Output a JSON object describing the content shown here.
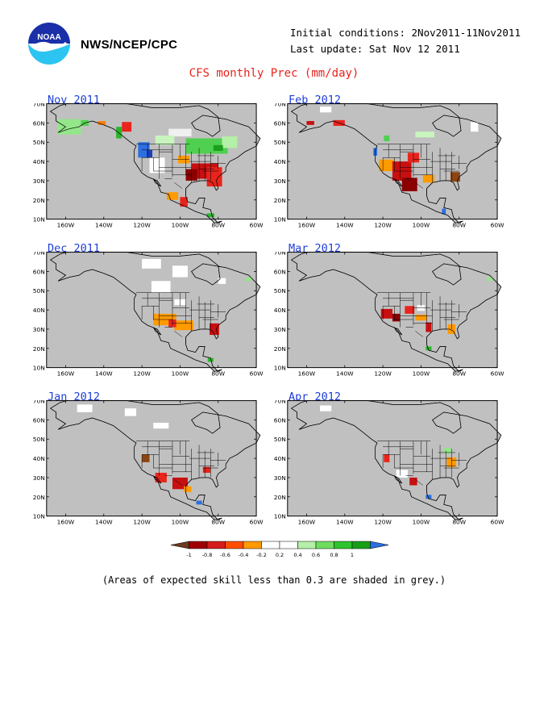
{
  "header": {
    "org": "NWS/NCEP/CPC",
    "initial_conditions": "Initial conditions: 2Nov2011-11Nov2011",
    "last_update": "Last update: Sat Nov 12 2011",
    "logo_text": "NOAA"
  },
  "title": "CFS monthly Prec (mm/day)",
  "axes": {
    "lat_labels": [
      "70N",
      "60N",
      "50N",
      "40N",
      "30N",
      "20N",
      "10N"
    ],
    "lon_labels": [
      "160W",
      "140W",
      "120W",
      "100W",
      "80W",
      "60W"
    ]
  },
  "panels": [
    {
      "label": "Nov 2011",
      "col": 0,
      "row": 0,
      "areas": [
        {
          "c": "#f0f0f0",
          "lat": 55,
          "lon": -100,
          "w": 12,
          "h": 4
        },
        {
          "c": "#c8f5be",
          "lat": 51,
          "lon": -108,
          "w": 10,
          "h": 5
        },
        {
          "c": "#50d050",
          "lat": 48,
          "lon": -86,
          "w": 22,
          "h": 8
        },
        {
          "c": "#b4f0a8",
          "lat": 50,
          "lon": -74,
          "w": 8,
          "h": 6
        },
        {
          "c": "#1ca01c",
          "lat": 47,
          "lon": -80,
          "w": 5,
          "h": 3
        },
        {
          "c": "#2b6fe0",
          "lat": 46,
          "lon": -119,
          "w": 6,
          "h": 8
        },
        {
          "c": "#1a3fbf",
          "lat": 44,
          "lon": -116,
          "w": 3,
          "h": 4
        },
        {
          "c": "#2ab42a",
          "lat": 55,
          "lon": -132,
          "w": 3,
          "h": 6
        },
        {
          "c": "#94e68a",
          "lat": 58,
          "lon": -158,
          "w": 12,
          "h": 8
        },
        {
          "c": "#50d050",
          "lat": 60,
          "lon": -150,
          "w": 4,
          "h": 3
        },
        {
          "c": "#e8241c",
          "lat": 58,
          "lon": -128,
          "w": 5,
          "h": 5
        },
        {
          "c": "#ff7f00",
          "lat": 60,
          "lon": -141,
          "w": 4,
          "h": 2
        },
        {
          "c": "#c81010",
          "lat": 35,
          "lon": -87,
          "w": 14,
          "h": 8
        },
        {
          "c": "#e8241c",
          "lat": 32,
          "lon": -82,
          "w": 8,
          "h": 10
        },
        {
          "c": "#8b0000",
          "lat": 33,
          "lon": -94,
          "w": 6,
          "h": 6
        },
        {
          "c": "#ff9a00",
          "lat": 41,
          "lon": -98,
          "w": 6,
          "h": 4
        },
        {
          "c": "#ff9a00",
          "lat": 22,
          "lon": -104,
          "w": 6,
          "h": 4
        },
        {
          "c": "#e8241c",
          "lat": 19,
          "lon": -98,
          "w": 4,
          "h": 5
        },
        {
          "c": "#ffffff",
          "lat": 38,
          "lon": -112,
          "w": 8,
          "h": 8
        },
        {
          "c": "#2ab42a",
          "lat": 12,
          "lon": -84,
          "w": 4,
          "h": 2
        }
      ]
    },
    {
      "label": "Feb 2012",
      "col": 1,
      "row": 0,
      "areas": [
        {
          "c": "#ffffff",
          "lat": 67,
          "lon": -150,
          "w": 6,
          "h": 3
        },
        {
          "c": "#e8241c",
          "lat": 60,
          "lon": -143,
          "w": 6,
          "h": 3
        },
        {
          "c": "#c81010",
          "lat": 60,
          "lon": -158,
          "w": 4,
          "h": 2
        },
        {
          "c": "#ff9a00",
          "lat": 38,
          "lon": -118,
          "w": 8,
          "h": 6
        },
        {
          "c": "#c81010",
          "lat": 35,
          "lon": -110,
          "w": 10,
          "h": 10
        },
        {
          "c": "#8b0000",
          "lat": 28,
          "lon": -106,
          "w": 8,
          "h": 7
        },
        {
          "c": "#e8241c",
          "lat": 42,
          "lon": -104,
          "w": 6,
          "h": 5
        },
        {
          "c": "#ff9a00",
          "lat": 31,
          "lon": -96,
          "w": 6,
          "h": 4
        },
        {
          "c": "#8b4513",
          "lat": 32,
          "lon": -82,
          "w": 5,
          "h": 5
        },
        {
          "c": "#50d050",
          "lat": 52,
          "lon": -118,
          "w": 3,
          "h": 3
        },
        {
          "c": "#c8f5be",
          "lat": 54,
          "lon": -98,
          "w": 10,
          "h": 3
        },
        {
          "c": "#ffffff",
          "lat": 58,
          "lon": -72,
          "w": 4,
          "h": 5
        },
        {
          "c": "#2b6fe0",
          "lat": 45,
          "lon": -124,
          "w": 2,
          "h": 4
        },
        {
          "c": "#2b6fe0",
          "lat": 14,
          "lon": -88,
          "w": 2,
          "h": 3
        }
      ]
    },
    {
      "label": "Dec 2011",
      "col": 0,
      "row": 1,
      "areas": [
        {
          "c": "#ffffff",
          "lat": 64,
          "lon": -115,
          "w": 10,
          "h": 5
        },
        {
          "c": "#ffffff",
          "lat": 60,
          "lon": -100,
          "w": 8,
          "h": 6
        },
        {
          "c": "#ffffff",
          "lat": 52,
          "lon": -110,
          "w": 10,
          "h": 6
        },
        {
          "c": "#ffffff",
          "lat": 55,
          "lon": -78,
          "w": 4,
          "h": 3
        },
        {
          "c": "#ff9a00",
          "lat": 35,
          "lon": -108,
          "w": 12,
          "h": 6
        },
        {
          "c": "#ff9a00",
          "lat": 32,
          "lon": -98,
          "w": 10,
          "h": 5
        },
        {
          "c": "#e8241c",
          "lat": 33,
          "lon": -104,
          "w": 4,
          "h": 4
        },
        {
          "c": "#c81010",
          "lat": 30,
          "lon": -82,
          "w": 5,
          "h": 6
        },
        {
          "c": "#ffffff",
          "lat": 44,
          "lon": -100,
          "w": 6,
          "h": 3
        },
        {
          "c": "#94e68a",
          "lat": 56,
          "lon": -64,
          "w": 3,
          "h": 2
        },
        {
          "c": "#2ab42a",
          "lat": 14,
          "lon": -84,
          "w": 3,
          "h": 2
        }
      ]
    },
    {
      "label": "Mar 2012",
      "col": 1,
      "row": 1,
      "areas": [
        {
          "c": "#c81010",
          "lat": 38,
          "lon": -118,
          "w": 6,
          "h": 5
        },
        {
          "c": "#8b0000",
          "lat": 36,
          "lon": -113,
          "w": 4,
          "h": 4
        },
        {
          "c": "#e8241c",
          "lat": 40,
          "lon": -106,
          "w": 5,
          "h": 4
        },
        {
          "c": "#ff9a00",
          "lat": 36,
          "lon": -100,
          "w": 6,
          "h": 3
        },
        {
          "c": "#c81010",
          "lat": 31,
          "lon": -96,
          "w": 3,
          "h": 5
        },
        {
          "c": "#ff9a00",
          "lat": 30,
          "lon": -84,
          "w": 4,
          "h": 5
        },
        {
          "c": "#ffffff",
          "lat": 41,
          "lon": -100,
          "w": 4,
          "h": 3
        },
        {
          "c": "#94e68a",
          "lat": 56,
          "lon": -64,
          "w": 3,
          "h": 2
        },
        {
          "c": "#2ab42a",
          "lat": 20,
          "lon": -96,
          "w": 3,
          "h": 2
        }
      ]
    },
    {
      "label": "Jan 2012",
      "col": 0,
      "row": 2,
      "areas": [
        {
          "c": "#ffffff",
          "lat": 66,
          "lon": -150,
          "w": 8,
          "h": 4
        },
        {
          "c": "#ffffff",
          "lat": 64,
          "lon": -126,
          "w": 6,
          "h": 4
        },
        {
          "c": "#ffffff",
          "lat": 57,
          "lon": -110,
          "w": 8,
          "h": 3
        },
        {
          "c": "#8b4513",
          "lat": 40,
          "lon": -118,
          "w": 4,
          "h": 4
        },
        {
          "c": "#e8241c",
          "lat": 30,
          "lon": -110,
          "w": 6,
          "h": 5
        },
        {
          "c": "#c81010",
          "lat": 27,
          "lon": -100,
          "w": 8,
          "h": 6
        },
        {
          "c": "#ff9a00",
          "lat": 24,
          "lon": -96,
          "w": 4,
          "h": 3
        },
        {
          "c": "#e8241c",
          "lat": 34,
          "lon": -86,
          "w": 4,
          "h": 3
        },
        {
          "c": "#2b6fe0",
          "lat": 17,
          "lon": -90,
          "w": 3,
          "h": 2
        }
      ]
    },
    {
      "label": "Apr 2012",
      "col": 1,
      "row": 2,
      "areas": [
        {
          "c": "#ffffff",
          "lat": 66,
          "lon": -150,
          "w": 6,
          "h": 3
        },
        {
          "c": "#e8241c",
          "lat": 40,
          "lon": -118,
          "w": 3,
          "h": 4
        },
        {
          "c": "#ff9a00",
          "lat": 38,
          "lon": -84,
          "w": 5,
          "h": 5
        },
        {
          "c": "#ffffff",
          "lat": 32,
          "lon": -110,
          "w": 6,
          "h": 4
        },
        {
          "c": "#c81010",
          "lat": 28,
          "lon": -104,
          "w": 4,
          "h": 4
        },
        {
          "c": "#94e68a",
          "lat": 44,
          "lon": -86,
          "w": 4,
          "h": 3
        },
        {
          "c": "#2b6fe0",
          "lat": 20,
          "lon": -96,
          "w": 3,
          "h": 2
        }
      ]
    }
  ],
  "colorbar": {
    "colors": [
      "#6b3a1f",
      "#a00000",
      "#d61c1c",
      "#ff4d00",
      "#ff9a00",
      "#ffffff",
      "#ffffff",
      "#b4f0a8",
      "#6fdc60",
      "#2ec42e",
      "#17a017",
      "#2b6fe0"
    ],
    "labels": [
      "-1",
      "-0.8",
      "-0.6",
      "-0.4",
      "-0.2",
      "0.2",
      "0.4",
      "0.6",
      "0.8",
      "1"
    ]
  },
  "footnote": "(Areas of expected skill less than 0.3 are shaded in grey.)"
}
